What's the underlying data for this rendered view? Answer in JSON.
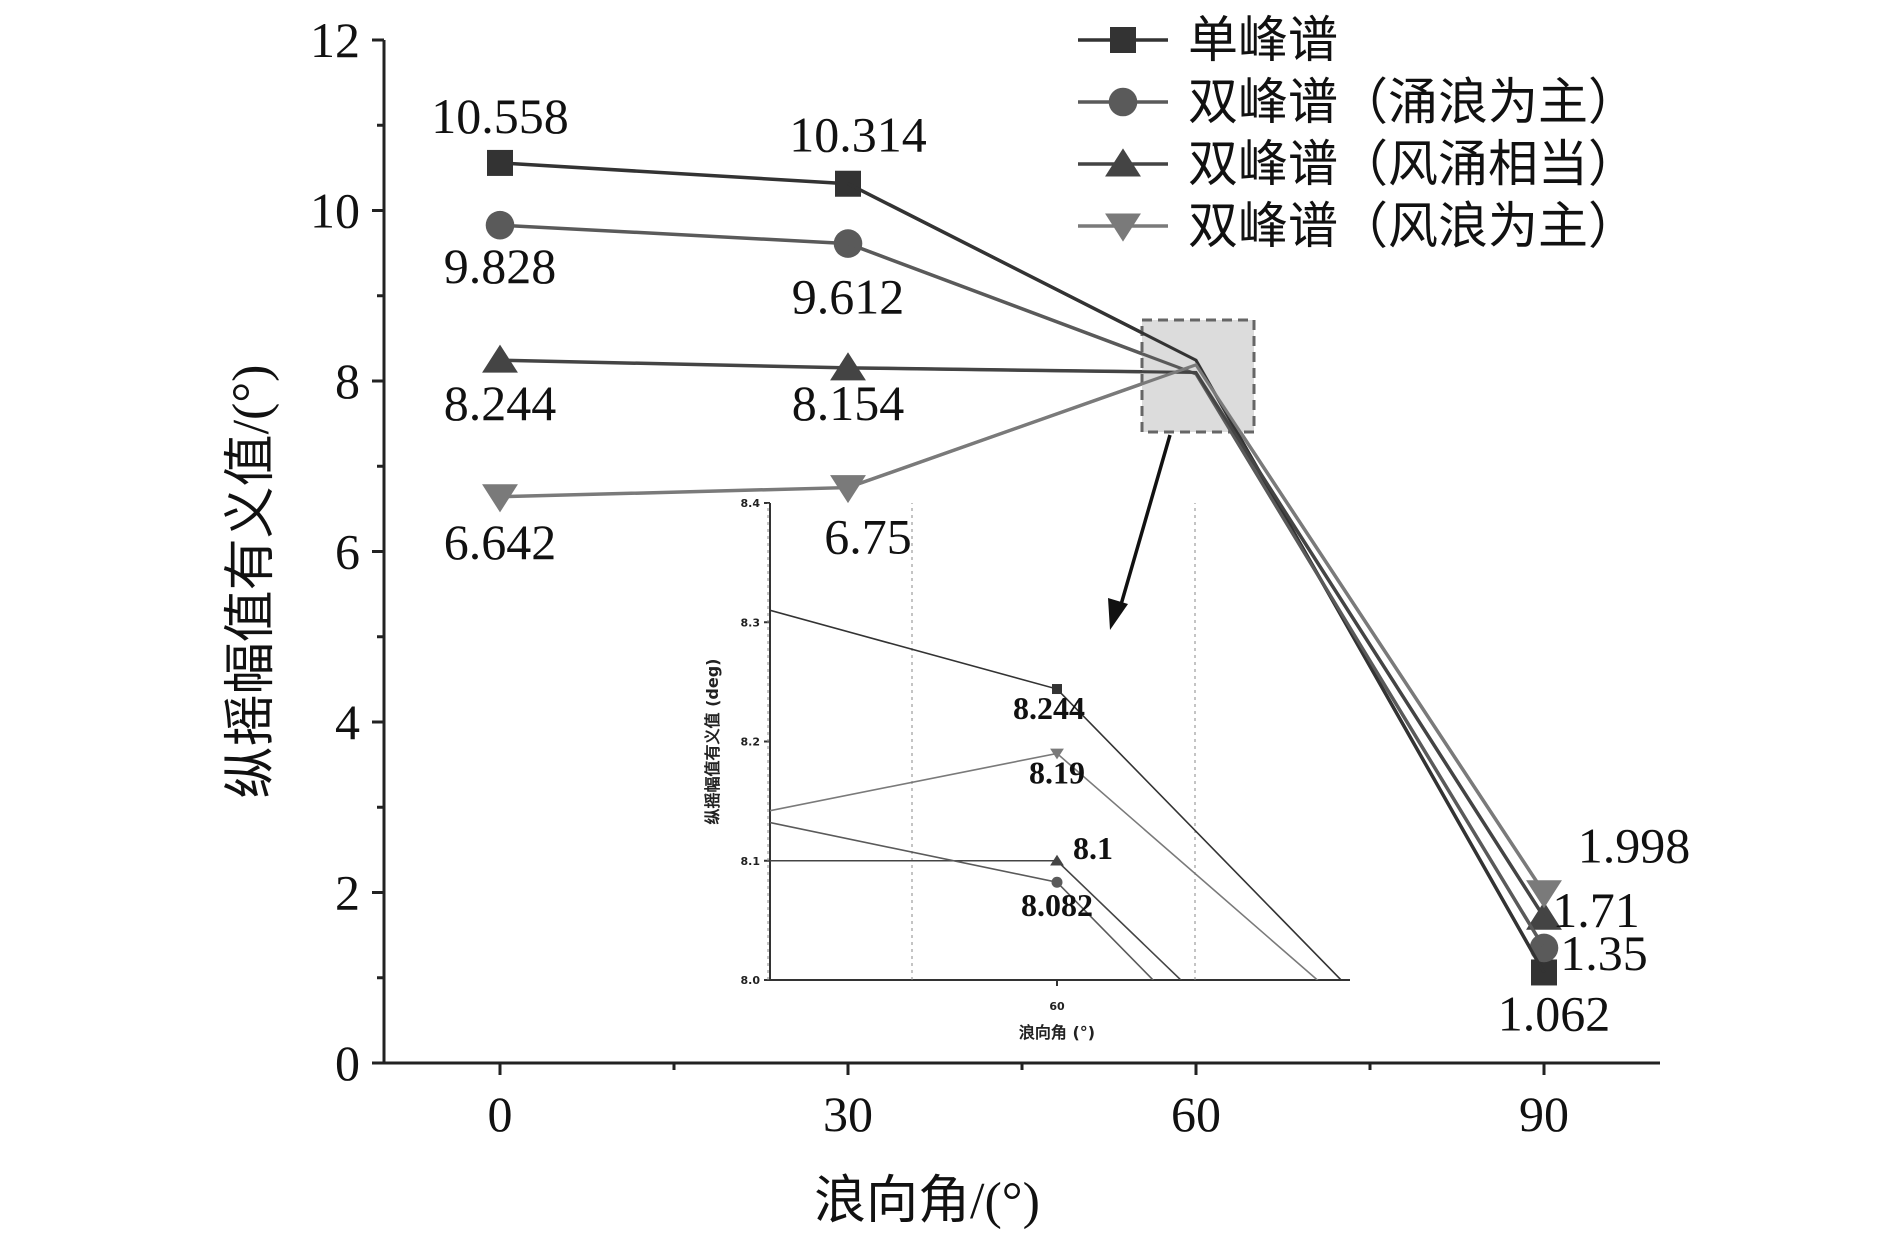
{
  "chart_data": {
    "type": "line",
    "xlabel": "浪向角/(°)",
    "ylabel": "纵摇幅值有义值/(°)",
    "x": [
      0,
      30,
      60,
      90
    ],
    "xticks": [
      "0",
      "30",
      "60",
      "90"
    ],
    "yticks": [
      "0",
      "2",
      "4",
      "6",
      "8",
      "10",
      "12"
    ],
    "xlim": [
      -10,
      100
    ],
    "ylim": [
      0,
      12
    ],
    "grid": false,
    "legend_position": "top-right",
    "series": [
      {
        "name": "单峰谱",
        "marker": "square",
        "color": "#333333",
        "values": [
          10.558,
          10.314,
          8.244,
          1.062
        ],
        "labels": [
          "10.558",
          "10.314",
          "",
          "1.062"
        ]
      },
      {
        "name": "双峰谱（涌浪为主）",
        "marker": "circle",
        "color": "#5a5a5a",
        "values": [
          9.828,
          9.612,
          8.082,
          1.35
        ],
        "labels": [
          "9.828",
          "9.612",
          "",
          "1.35"
        ]
      },
      {
        "name": "双峰谱（风涌相当）",
        "marker": "triangle-up",
        "color": "#444444",
        "values": [
          8.244,
          8.154,
          8.1,
          1.71
        ],
        "labels": [
          "8.244",
          "8.154",
          "",
          "1.71"
        ]
      },
      {
        "name": "双峰谱（风浪为主）",
        "marker": "triangle-down",
        "color": "#7a7a7a",
        "values": [
          6.642,
          6.75,
          8.19,
          1.998
        ],
        "labels": [
          "6.642",
          "6.75",
          "",
          "1.998"
        ]
      }
    ],
    "inset": {
      "xlabel": "浪向角 (°)",
      "ylabel": "纵摇幅值有义值 (deg)",
      "xtick": "60",
      "yticks": [
        "8.0",
        "8.1",
        "8.2",
        "8.3",
        "8.4"
      ],
      "ylim": [
        8.0,
        8.4
      ],
      "points": [
        {
          "series": 0,
          "value": 8.244,
          "label": "8.244"
        },
        {
          "series": 3,
          "value": 8.19,
          "label": "8.19"
        },
        {
          "series": 2,
          "value": 8.1,
          "label": "8.1"
        },
        {
          "series": 1,
          "value": 8.082,
          "label": "8.082"
        }
      ]
    }
  }
}
